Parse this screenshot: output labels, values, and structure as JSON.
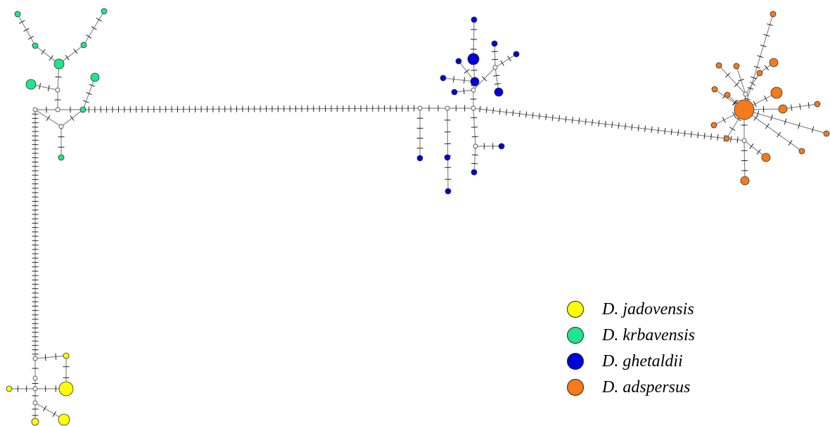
{
  "legend": {
    "items": [
      {
        "label": "D. jadovensis",
        "color": "#ffff00",
        "name": "legend-item-jadovensis"
      },
      {
        "label": "D. krbavensis",
        "color": "#1fe68a",
        "name": "legend-item-krbavensis"
      },
      {
        "label": "D. ghetaldii",
        "color": "#0000d8",
        "name": "legend-item-ghetaldii"
      },
      {
        "label": "D. adspersus",
        "color": "#f47a1a",
        "name": "legend-item-adspersus"
      }
    ]
  },
  "colors": {
    "jadovensis": "#ffff00",
    "krbavensis": "#1fe68a",
    "ghetaldii": "#0000d8",
    "adspersus": "#f47a1a",
    "median_vector": "#ffffff",
    "edge": "#888888",
    "mutation_tick": "#222222"
  }
}
